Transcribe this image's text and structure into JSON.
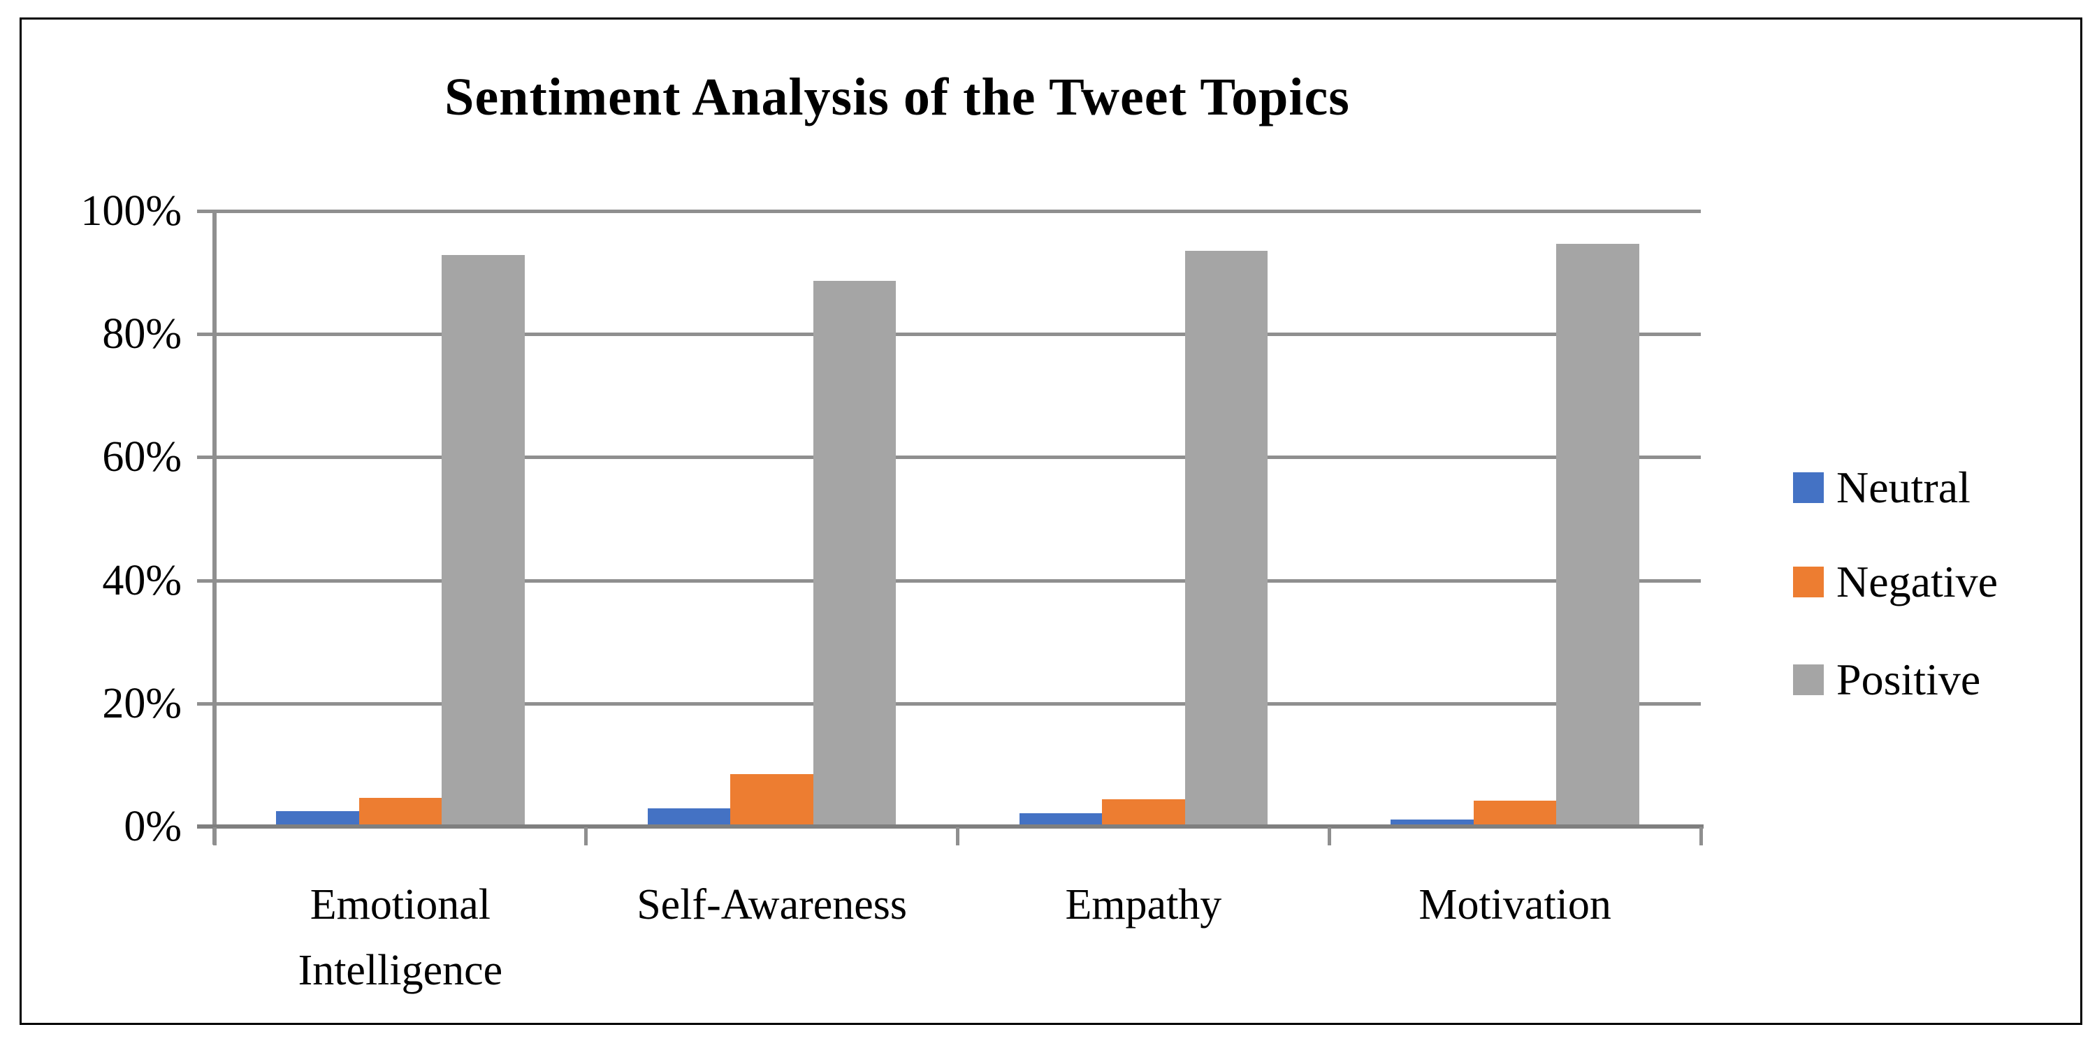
{
  "figure": {
    "title": "Sentiment Analysis of the Tweet Topics"
  },
  "chart_data": {
    "type": "bar",
    "title": "Sentiment Analysis of the Tweet Topics",
    "categories": [
      "Emotional Intelligence",
      "Self-Awareness",
      "Empathy",
      "Motivation"
    ],
    "series": [
      {
        "name": "Neutral",
        "color": "#4472C4",
        "values": [
          2.5,
          2.9,
          2.1,
          1.1
        ]
      },
      {
        "name": "Negative",
        "color": "#ED7D31",
        "values": [
          4.7,
          8.5,
          4.4,
          4.2
        ]
      },
      {
        "name": "Positive",
        "color": "#A5A5A5",
        "values": [
          92.8,
          88.6,
          93.5,
          94.7
        ]
      }
    ],
    "unit": "%",
    "ylim": [
      0,
      100
    ],
    "ytick_step": 20,
    "ytick_labels": [
      "0%",
      "20%",
      "40%",
      "60%",
      "80%",
      "100%"
    ],
    "grid": true,
    "legend_position": "right",
    "legend_entries": [
      "Neutral",
      "Negative",
      "Positive"
    ]
  },
  "colors": {
    "gridline": "#8F8F8F",
    "axis": "#7F7F7F",
    "frame_border": "#000000",
    "background": "#FFFFFF",
    "text": "#000000"
  }
}
